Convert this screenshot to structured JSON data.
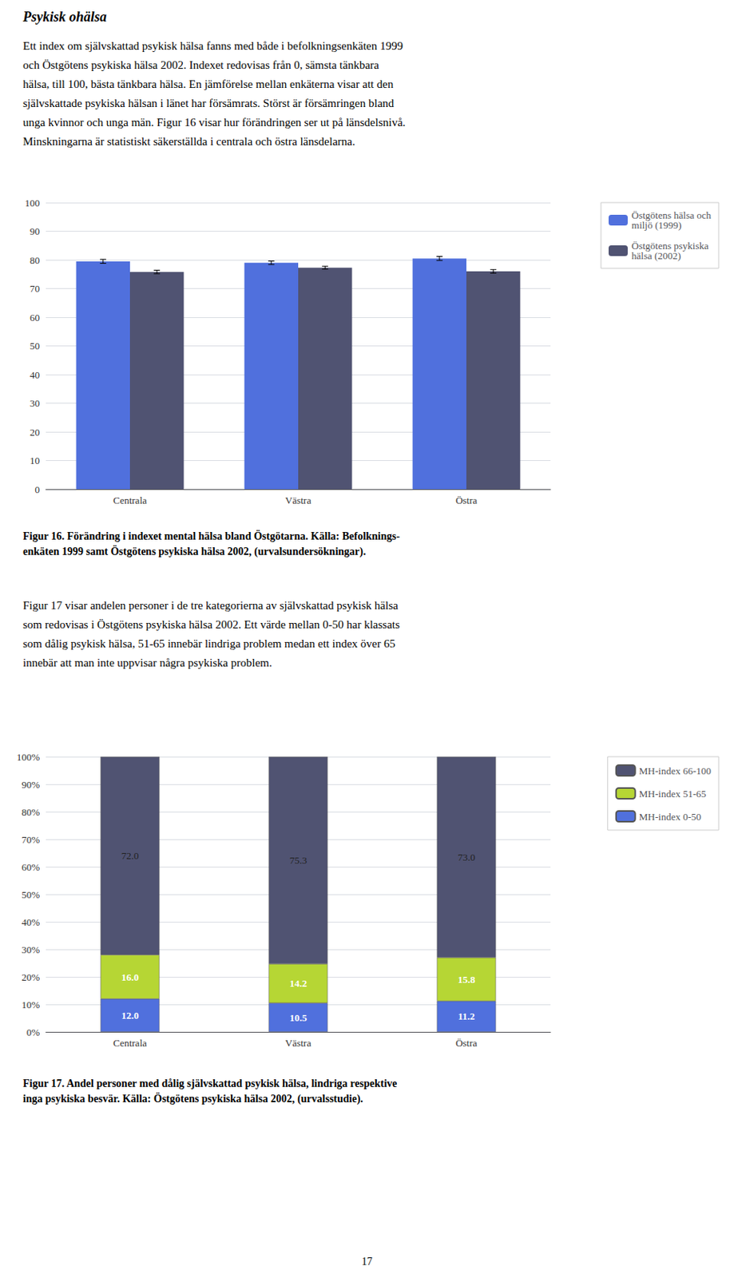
{
  "title": "Psykisk ohälsa",
  "page_number": "17",
  "chart_data": [
    {
      "type": "bar",
      "intro": "Ett index om självskattad psykisk hälsa fanns med både i befolkningsenkäten 1999\noch Östgötens psykiska hälsa 2002. Indexet redovisas från 0, sämsta tänkbara\nhälsa, till 100, bästa tänkbara hälsa. En jämförelse mellan enkäterna visar att den\nsjälvskattade psykiska hälsan i länet har försämrats. Störst är försämringen bland\nunga kvinnor och unga män. Figur 16 visar hur förändringen ser ut på länsdelsnivå.\nMinskningarna är statistiskt säkerställda i centrala och östra länsdelarna.",
      "caption": "Figur 16. Förändring i indexet mental hälsa bland Östgötarna. Källa: Befolknings-\nenkäten 1999 samt Östgötens psykiska hälsa 2002, (urvalsundersökningar).",
      "categories": [
        "Centrala",
        "Västra",
        "Östra"
      ],
      "series": [
        {
          "name": "Östgötens hälsa och\nmiljö (1999)",
          "values": [
            79.5,
            79.0,
            80.5
          ],
          "errors": [
            0.7,
            0.6,
            0.7
          ]
        },
        {
          "name": "Östgötens psykiska\nhälsa (2002)",
          "values": [
            75.8,
            77.3,
            76.0
          ],
          "errors": [
            0.6,
            0.5,
            0.6
          ]
        }
      ],
      "ylim": [
        0,
        100
      ],
      "yticks": [
        0,
        10,
        20,
        30,
        40,
        50,
        60,
        70,
        80,
        90,
        100
      ],
      "grid": true,
      "legend": "right"
    },
    {
      "type": "bar",
      "intro": "Figur 17 visar andelen personer i de tre kategorierna av självskattad psykisk hälsa\nsom redovisas i Östgötens psykiska hälsa 2002. Ett värde mellan 0-50 har klassats\nsom dålig psykisk hälsa, 51-65 innebär lindriga problem medan ett index över 65\ninnebär att man inte uppvisar några psykiska problem.",
      "caption": "Figur 17. Andel personer med dålig självskattad psykisk hälsa, lindriga respektive\ninga psykiska besvär. Källa: Östgötens psykiska hälsa 2002, (urvalsstudie).",
      "categories": [
        "Centrala",
        "Västra",
        "Östra"
      ],
      "stacked": true,
      "data_labels": true,
      "series": [
        {
          "name": "MH-index 0-50",
          "values": [
            12.0,
            10.5,
            11.2
          ],
          "value_labels": [
            "12.0",
            "10.5",
            "11.2"
          ]
        },
        {
          "name": "MH-index 51-65",
          "values": [
            16.0,
            14.2,
            15.8
          ],
          "value_labels": [
            "16.0",
            "14.2",
            "15.8"
          ]
        },
        {
          "name": "MH-index 66-100",
          "values": [
            72.0,
            75.3,
            73.0
          ],
          "value_labels": [
            "72.0",
            "75.3",
            "73.0"
          ]
        }
      ],
      "ylim": [
        0,
        100
      ],
      "yticks": [
        {
          "value": 0,
          "label": "0%"
        },
        {
          "value": 10,
          "label": "10%"
        },
        {
          "value": 20,
          "label": "20%"
        },
        {
          "value": 30,
          "label": "30%"
        },
        {
          "value": 40,
          "label": "40%"
        },
        {
          "value": 50,
          "label": "50%"
        },
        {
          "value": 60,
          "label": "60%"
        },
        {
          "value": 70,
          "label": "70%"
        },
        {
          "value": 80,
          "label": "80%"
        },
        {
          "value": 90,
          "label": "90%"
        },
        {
          "value": 100,
          "label": "100%"
        }
      ],
      "grid": true,
      "legend": "right"
    }
  ]
}
